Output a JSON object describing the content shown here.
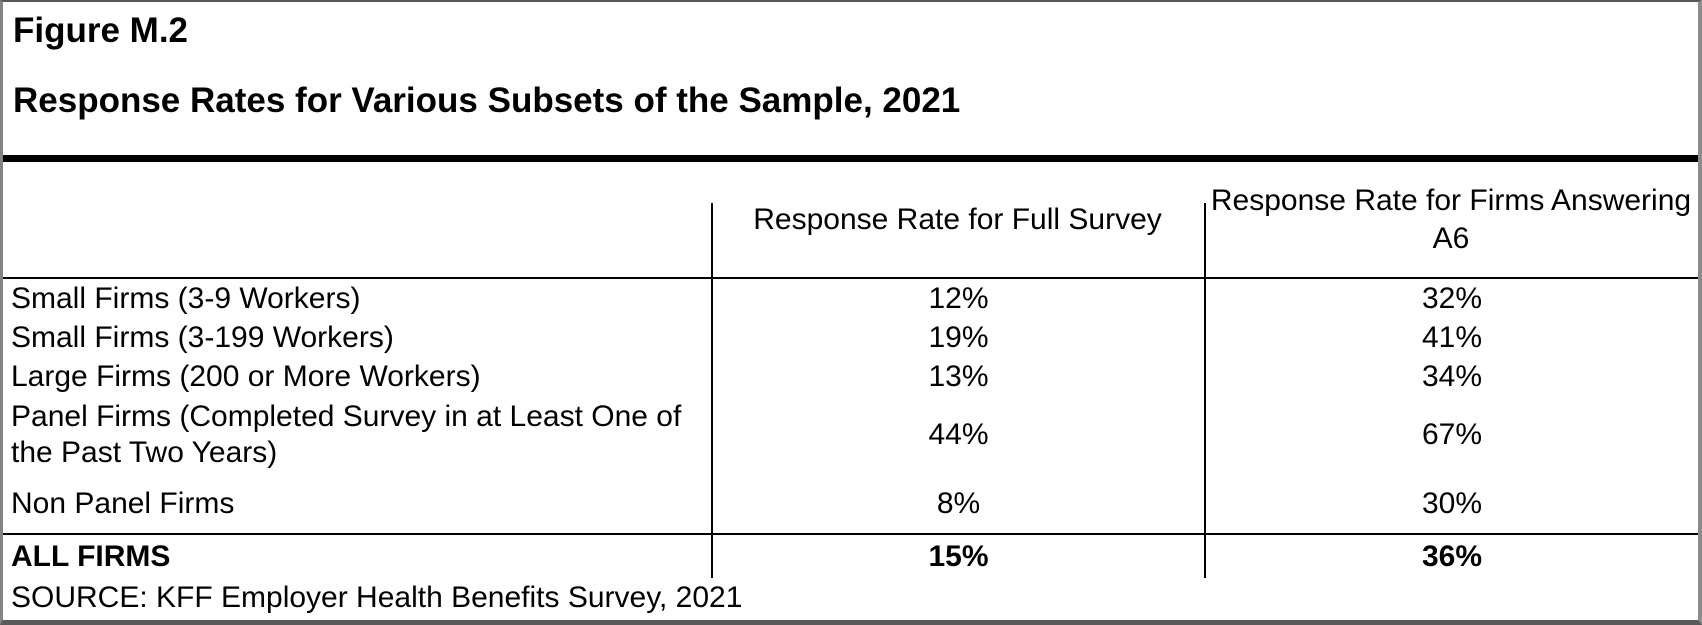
{
  "figure": {
    "label": "Figure M.2",
    "title": "Response Rates for Various Subsets of the Sample, 2021"
  },
  "table": {
    "columns": [
      "",
      "Response Rate for Full Survey",
      "Response Rate for Firms Answering A6"
    ],
    "rows": [
      {
        "label": "Small Firms (3-9 Workers)",
        "full_survey": "12%",
        "answering_a6": "32%"
      },
      {
        "label": "Small Firms (3-199 Workers)",
        "full_survey": "19%",
        "answering_a6": "41%"
      },
      {
        "label": "Large Firms (200 or More Workers)",
        "full_survey": "13%",
        "answering_a6": "34%"
      },
      {
        "label": "Panel Firms (Completed Survey in at Least One of the Past Two Years)",
        "full_survey": "44%",
        "answering_a6": "67%"
      },
      {
        "label": "Non Panel Firms",
        "full_survey": "8%",
        "answering_a6": "30%"
      }
    ],
    "total_row": {
      "label": "ALL FIRMS",
      "full_survey": "15%",
      "answering_a6": "36%"
    }
  },
  "source": "SOURCE: KFF Employer Health Benefits Survey, 2021",
  "colors": {
    "text": "#000000",
    "rule": "#000000",
    "frame": "#848484",
    "background": "#ffffff"
  }
}
